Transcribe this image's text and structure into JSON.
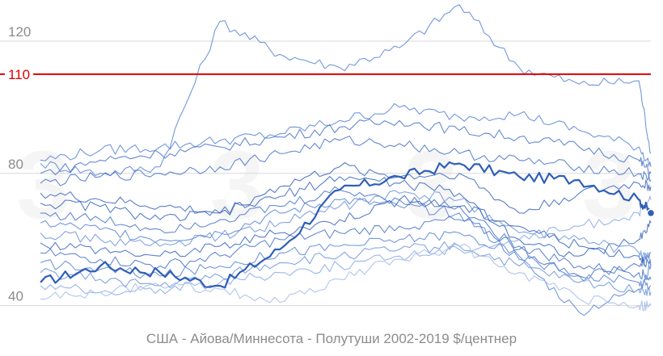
{
  "chart_data": {
    "type": "line",
    "title": "",
    "xlabel": "США - Айова/Миннесота - Полутуши 2002-2019   $/центнер",
    "ylabel": "",
    "ylim": [
      36,
      130
    ],
    "yticks": [
      40,
      80,
      120
    ],
    "reference_line": {
      "value": 110,
      "label": "110",
      "color": "#e00000"
    },
    "grid": true,
    "x": [
      1,
      6,
      11,
      16,
      21,
      26,
      31,
      36,
      41,
      46,
      51,
      52
    ],
    "series": [
      {
        "values": [
          47,
          52,
          50,
          46,
          57,
          75,
          79,
          83,
          79,
          78,
          72,
          68
        ],
        "color": "#2f5fb8",
        "highlight": true
      },
      {
        "values": [
          83,
          80,
          82,
          126,
          116,
          112,
          118,
          131,
          112,
          107,
          108,
          86
        ],
        "color": "#5b86d6"
      },
      {
        "values": [
          84,
          87,
          88,
          90,
          92,
          96,
          100,
          97,
          98,
          93,
          88,
          82
        ],
        "color": "#5b86d6"
      },
      {
        "values": [
          80,
          84,
          86,
          88,
          91,
          94,
          96,
          93,
          91,
          88,
          84,
          80
        ],
        "color": "#4a74c9"
      },
      {
        "values": [
          77,
          79,
          80,
          82,
          86,
          90,
          89,
          86,
          84,
          82,
          80,
          78
        ],
        "color": "#4a74c9"
      },
      {
        "values": [
          74,
          72,
          70,
          68,
          76,
          82,
          79,
          80,
          68,
          74,
          77,
          76
        ],
        "color": "#3b67c0"
      },
      {
        "values": [
          71,
          70,
          66,
          68,
          73,
          79,
          77,
          74,
          60,
          55,
          60,
          65
        ],
        "color": "#3b67c0"
      },
      {
        "values": [
          68,
          66,
          63,
          66,
          70,
          75,
          72,
          70,
          57,
          49,
          52,
          56
        ],
        "color": "#4a74c9"
      },
      {
        "values": [
          65,
          63,
          60,
          62,
          68,
          72,
          70,
          68,
          54,
          38,
          45,
          52
        ],
        "color": "#5b86d6"
      },
      {
        "values": [
          62,
          60,
          58,
          61,
          65,
          70,
          74,
          72,
          62,
          60,
          56,
          54
        ],
        "color": "#6f95dc"
      },
      {
        "values": [
          59,
          57,
          55,
          58,
          62,
          66,
          72,
          70,
          64,
          58,
          55,
          52
        ],
        "color": "#3b67c0"
      },
      {
        "values": [
          56,
          54,
          52,
          55,
          60,
          62,
          64,
          66,
          58,
          52,
          50,
          48
        ],
        "color": "#4a74c9"
      },
      {
        "values": [
          53,
          51,
          49,
          52,
          56,
          58,
          60,
          62,
          55,
          49,
          47,
          46
        ],
        "color": "#5b86d6"
      },
      {
        "values": [
          50,
          48,
          46,
          49,
          53,
          55,
          57,
          58,
          52,
          47,
          45,
          44
        ],
        "color": "#6f95dc"
      },
      {
        "values": [
          46,
          44,
          45,
          47,
          50,
          52,
          55,
          57,
          60,
          64,
          68,
          72
        ],
        "color": "#8aa9e4"
      },
      {
        "values": [
          42,
          44,
          46,
          45,
          41,
          48,
          54,
          58,
          50,
          42,
          40,
          40
        ],
        "color": "#a3bcea"
      }
    ]
  }
}
